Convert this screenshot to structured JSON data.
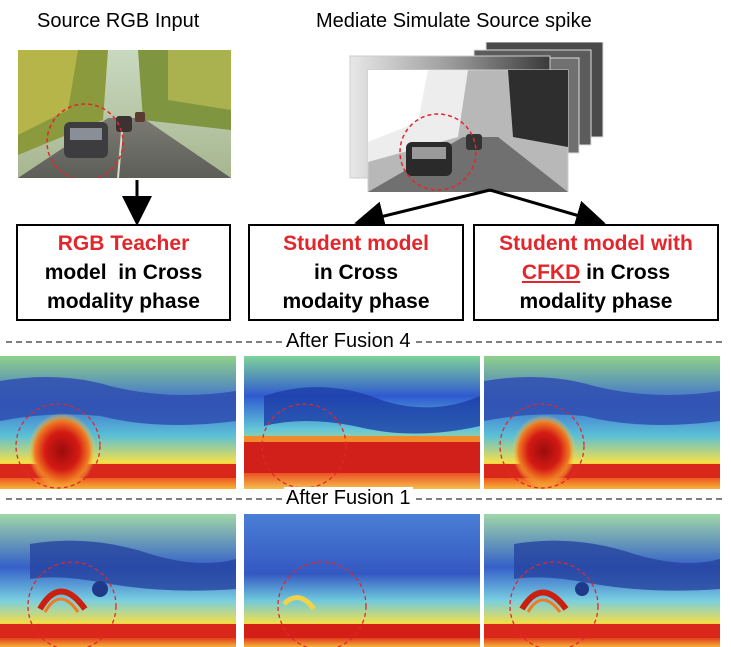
{
  "titles": {
    "source_rgb": "Source RGB Input",
    "spike": "Mediate Simulate Source spike"
  },
  "boxes": {
    "teacher": {
      "line1": "RGB Teacher",
      "line2": "model  in Cross",
      "line3": "modality phase"
    },
    "student": {
      "line1": "Student model",
      "line2": "in Cross",
      "line3": "modaity phase"
    },
    "cfkd": {
      "line1": "Student model with",
      "line2_highlight": "CFKD",
      "line2_rest": " in Cross",
      "line3": "modality phase"
    }
  },
  "separators": {
    "fusion4": "After Fusion 4",
    "fusion1": "After Fusion 1"
  },
  "colors": {
    "highlight_text": "#e3262b",
    "circle_marker": "#e3262b",
    "heat_low": "#2f4fb0",
    "heat_high": "#d41a14"
  }
}
